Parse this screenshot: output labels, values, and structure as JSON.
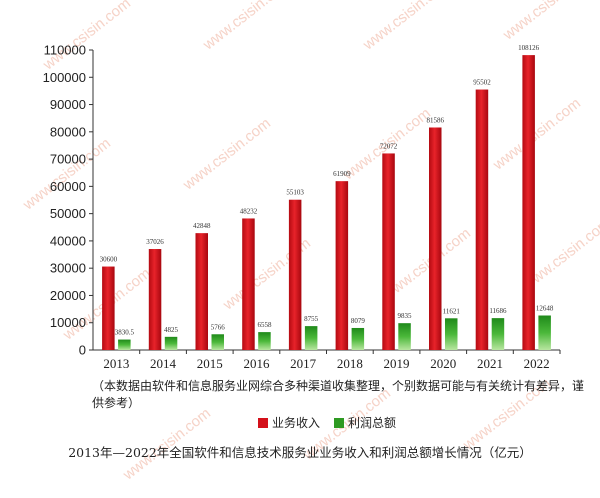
{
  "watermark": "www.csisin.com",
  "note": "（本数据由软件和信息服务业网综合多种渠道收集整理，个别数据可能与有关统计有差异，谨供参考）",
  "colors": {
    "income": "#d4101a",
    "profit": "#2e9a22"
  },
  "chart_data": {
    "type": "bar",
    "title": "2013年—2022年全国软件和信息技术服务业业务收入和利润总额增长情况（亿元）",
    "categories": [
      "2013",
      "2014",
      "2015",
      "2016",
      "2017",
      "2018",
      "2019",
      "2020",
      "2021",
      "2022"
    ],
    "series": [
      {
        "name": "业务收入",
        "values": [
          30600,
          37026,
          42848,
          48232,
          55103,
          61909,
          72072,
          81586,
          95502,
          108126
        ],
        "labels": [
          "30600",
          "37026",
          "42848",
          "48232",
          "55103",
          "61909",
          "72072",
          "81586",
          "95502",
          "108126"
        ]
      },
      {
        "name": "利润总额",
        "values": [
          3830.5,
          4825,
          5766,
          6558,
          8755,
          8079,
          9835,
          11621,
          11686,
          12648
        ],
        "labels": [
          "3830.5",
          "4825",
          "5766",
          "6558",
          "8755",
          "8079",
          "9835",
          "11621",
          "11686",
          "12648"
        ]
      }
    ],
    "ylim": [
      0,
      110000
    ],
    "yticks": [
      0,
      10000,
      20000,
      30000,
      40000,
      50000,
      60000,
      70000,
      80000,
      90000,
      100000,
      110000
    ],
    "ytick_labels": [
      "0",
      "10000",
      "20000",
      "30000",
      "40000",
      "50000",
      "60000",
      "70000",
      "80000",
      "90000",
      "100000",
      "110000"
    ],
    "legend_position": "bottom",
    "grid": false
  }
}
